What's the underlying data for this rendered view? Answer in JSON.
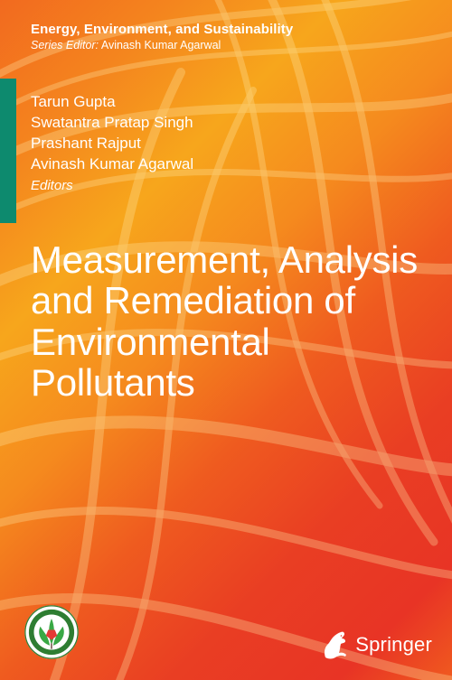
{
  "series": {
    "name": "Energy, Environment, and Sustainability",
    "editor_label": "Series Editor:",
    "editor_name": "Avinash Kumar Agarwal"
  },
  "editors": {
    "names": [
      "Tarun Gupta",
      "Swatantra Pratap Singh",
      "Prashant Rajput",
      "Avinash Kumar Agarwal"
    ],
    "role_label": "Editors"
  },
  "title_lines": [
    "Measurement, Analysis",
    "and Remediation of",
    "Environmental",
    "Pollutants"
  ],
  "publisher": {
    "name": "Springer"
  },
  "colors": {
    "green_bar": "#0d8a6e",
    "text": "#ffffff",
    "bg_stops": [
      "#f26a1f",
      "#f4841e",
      "#f7a61c",
      "#f58a1e",
      "#ef5b1f",
      "#e93e23",
      "#e83425",
      "#f05a1f"
    ]
  },
  "swirl": {
    "stroke_color": "#ffe9a8",
    "stroke_opacity": 0.55,
    "paths": [
      "M -60 120 C 120 -20, 360 40, 560 -30",
      "M -60 160 C 140 10, 380 90, 560 20",
      "M -60 210 C 160 60, 400 160, 560 90",
      "M -60 270 C 170 120, 410 240, 560 180",
      "M -60 340 C 180 200, 420 330, 560 290",
      "M -60 420 C 180 300, 430 430, 560 400",
      "M -60 510 C 170 400, 430 540, 560 520",
      "M -60 600 C 160 500, 420 650, 560 640",
      "M -60 690 C 140 600, 400 760, 560 760",
      "M 220 -40 C 330 140, 260 360, 420 560",
      "M 280 -40 C 400 160, 320 380, 480 600",
      "M 340 -40 C 460 180, 380 400, 540 640",
      "M 50 780 C 140 560, 80 320, 200 80",
      "M 120 780 C 220 580, 150 340, 280 100"
    ],
    "widths": [
      8,
      6,
      10,
      7,
      12,
      8,
      14,
      9,
      11,
      7,
      9,
      8,
      10,
      8
    ]
  }
}
